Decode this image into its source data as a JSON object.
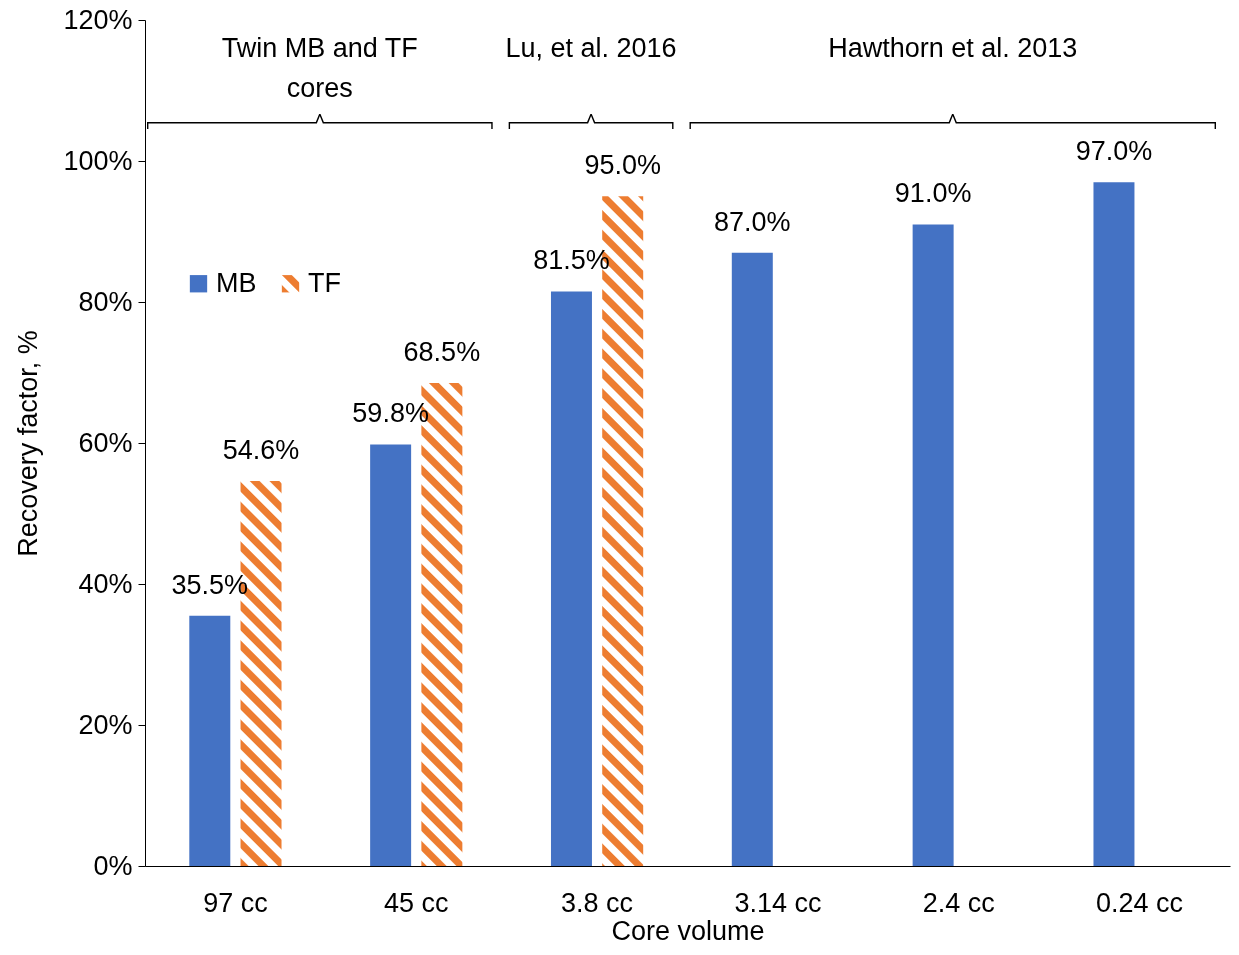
{
  "chart_data": {
    "type": "bar",
    "xlabel": "Core volume",
    "ylabel": "Recovery factor, %",
    "categories": [
      "97 cc",
      "45 cc",
      "3.8 cc",
      "3.14 cc",
      "2.4 cc",
      "0.24 cc"
    ],
    "series": [
      {
        "name": "MB",
        "color": "#4472c4",
        "values": [
          35.5,
          59.8,
          81.5,
          87.0,
          91.0,
          97.0
        ],
        "value_labels": [
          "35.5%",
          "59.8%",
          "81.5%",
          "87.0%",
          "91.0%",
          "97.0%"
        ]
      },
      {
        "name": "TF",
        "color": "#ed7d31",
        "values": [
          54.6,
          68.5,
          95.0,
          null,
          null,
          null
        ],
        "value_labels": [
          "54.6%",
          "68.5%",
          "95.0%",
          null,
          null,
          null
        ]
      }
    ],
    "ylim": [
      0,
      120
    ],
    "yticks": [
      {
        "value": 0,
        "label": "0%"
      },
      {
        "value": 20,
        "label": "20%"
      },
      {
        "value": 40,
        "label": "40%"
      },
      {
        "value": 60,
        "label": "60%"
      },
      {
        "value": 80,
        "label": "80%"
      },
      {
        "value": 100,
        "label": "100%"
      },
      {
        "value": 120,
        "label": "120%"
      }
    ],
    "legend": "left",
    "grid": false,
    "annotations": [
      "Twin MB and TF cores",
      "Lu, et al. 2016",
      "Hawthorn et al. 2013"
    ]
  }
}
